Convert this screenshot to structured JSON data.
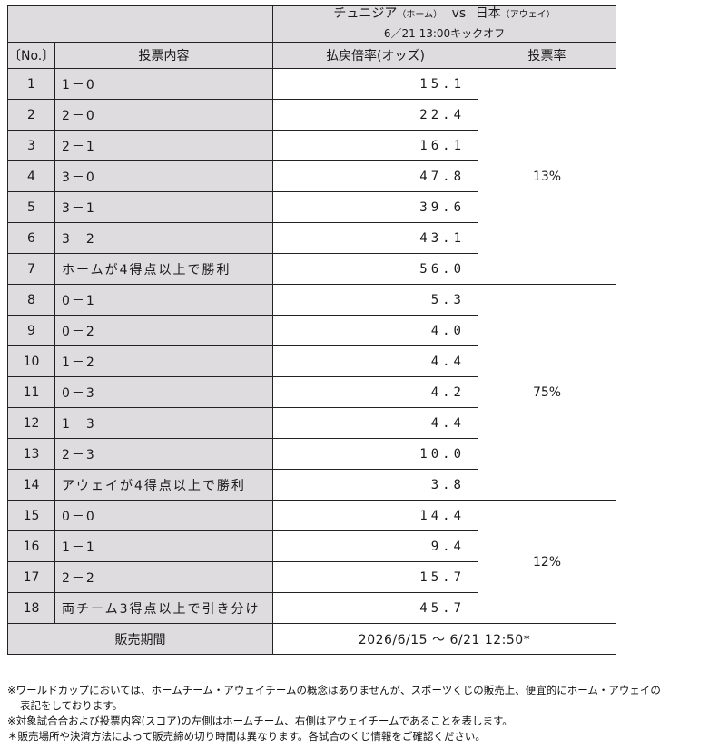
{
  "match": {
    "home": "チュニジア",
    "home_tag": "（ホーム）",
    "vs": "vs",
    "away": "日本",
    "away_tag": "（アウェイ）",
    "kickoff": "6／21 13:00キックオフ"
  },
  "headers": {
    "no": "〔No.〕",
    "content": "投票内容",
    "odds": "払戻倍率(オッズ)",
    "rate": "投票率"
  },
  "rows": [
    {
      "no": "1",
      "content": "1－0",
      "odds": "15.1"
    },
    {
      "no": "2",
      "content": "2－0",
      "odds": "22.4"
    },
    {
      "no": "3",
      "content": "2－1",
      "odds": "16.1"
    },
    {
      "no": "4",
      "content": "3－0",
      "odds": "47.8"
    },
    {
      "no": "5",
      "content": "3－1",
      "odds": "39.6"
    },
    {
      "no": "6",
      "content": "3－2",
      "odds": "43.1"
    },
    {
      "no": "7",
      "content": "ホームが4得点以上で勝利",
      "odds": "56.0"
    },
    {
      "no": "8",
      "content": "0－1",
      "odds": "5.3"
    },
    {
      "no": "9",
      "content": "0－2",
      "odds": "4.0"
    },
    {
      "no": "10",
      "content": "1－2",
      "odds": "4.4"
    },
    {
      "no": "11",
      "content": "0－3",
      "odds": "4.2"
    },
    {
      "no": "12",
      "content": "1－3",
      "odds": "4.4"
    },
    {
      "no": "13",
      "content": "2－3",
      "odds": "10.0"
    },
    {
      "no": "14",
      "content": "アウェイが4得点以上で勝利",
      "odds": "3.8"
    },
    {
      "no": "15",
      "content": "0－0",
      "odds": "14.4"
    },
    {
      "no": "16",
      "content": "1－1",
      "odds": "9.4"
    },
    {
      "no": "17",
      "content": "2－2",
      "odds": "15.7"
    },
    {
      "no": "18",
      "content": "両チーム3得点以上で引き分け",
      "odds": "45.7"
    }
  ],
  "rates": {
    "home_win": "13%",
    "away_win": "75%",
    "draw": "12%"
  },
  "period": {
    "label": "販売期間",
    "value": "2026/6/15 ～ 6/21 12:50*"
  },
  "notes": {
    "n1a": "※ワールドカップにおいては、ホームチーム・アウェイチームの概念はありませんが、スポーツくじの販売上、便宜的にホーム・アウェイの",
    "n1b": "表記をしております。",
    "n2": "※対象試合合および投票内容(スコア)の左側はホームチーム、右側はアウェイチームであることを表します。",
    "n3": "＊販売場所や決済方法によって販売締め切り時間は異なります。各試合のくじ情報をご確認ください。"
  }
}
